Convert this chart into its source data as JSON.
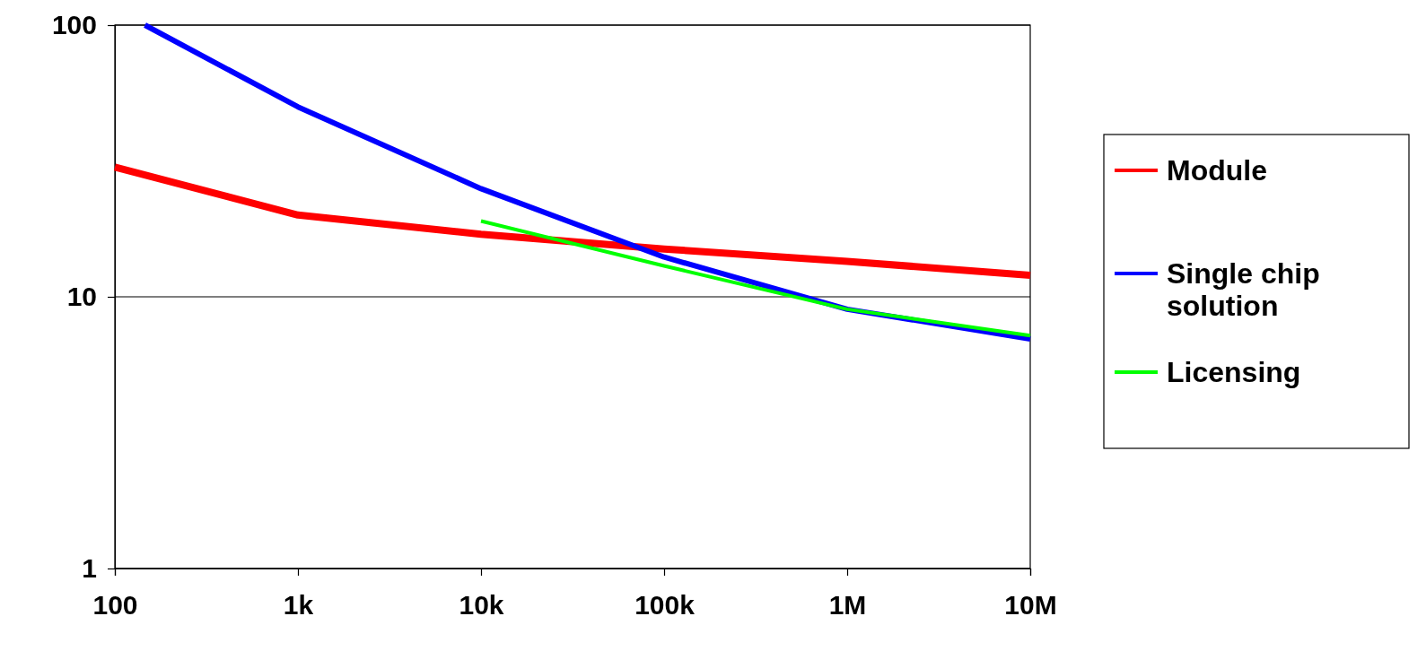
{
  "chart_data": {
    "type": "line",
    "log": "xy",
    "xlim": [
      100,
      10000000
    ],
    "ylim": [
      1,
      100
    ],
    "xticks": [
      {
        "value": 100,
        "label": "100"
      },
      {
        "value": 1000,
        "label": "1k"
      },
      {
        "value": 10000,
        "label": "10k"
      },
      {
        "value": 100000,
        "label": "100k"
      },
      {
        "value": 1000000,
        "label": "1M"
      },
      {
        "value": 10000000,
        "label": "10M"
      }
    ],
    "yticks": [
      1,
      10,
      100
    ],
    "grid": "y",
    "legend": "right",
    "line_style": "solid",
    "marker": "none",
    "series": [
      {
        "name": "Module",
        "color": "#ff0000",
        "x": [
          100,
          1000,
          10000,
          100000,
          1000000,
          10000000
        ],
        "values": [
          30,
          20,
          17,
          15,
          13.5,
          12
        ]
      },
      {
        "name": "Single chip solution",
        "color": "#0000ff",
        "x": [
          146,
          1000,
          10000,
          100000,
          1000000,
          10000000
        ],
        "values": [
          100,
          50,
          25,
          14,
          9,
          7
        ]
      },
      {
        "name": "Licensing",
        "color": "#00ff00",
        "x": [
          10000,
          100000,
          1000000,
          10000000
        ],
        "values": [
          19,
          13,
          9,
          7.2
        ]
      }
    ]
  }
}
